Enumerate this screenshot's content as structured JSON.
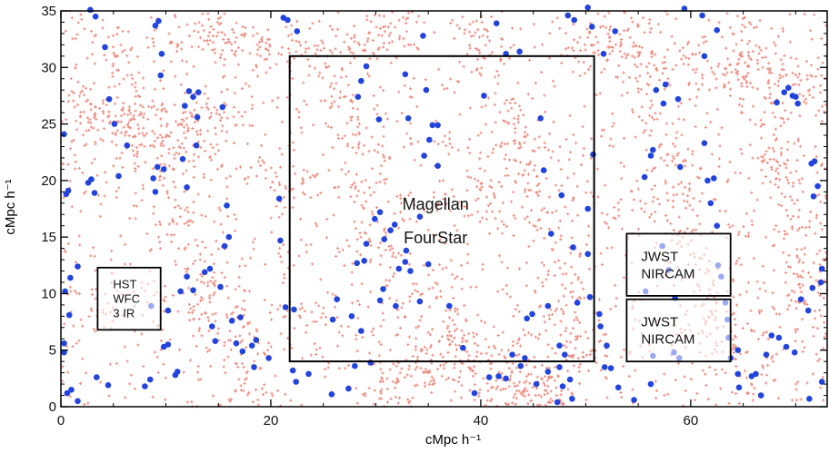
{
  "chart_data": {
    "type": "scatter",
    "title": "",
    "xlabel": "cMpc h⁻¹",
    "ylabel": "cMpc h⁻¹",
    "xlim": [
      0,
      73
    ],
    "ylim": [
      0,
      35
    ],
    "xticks": [
      0,
      20,
      40,
      60
    ],
    "yticks": [
      0,
      5,
      10,
      15,
      20,
      25,
      30,
      35
    ],
    "grid": false,
    "colors": {
      "background_points": "#e8786a",
      "highlight_points": "#2244dd",
      "frames": "#000000"
    },
    "series": [
      {
        "style": "small-cross",
        "points_description_count": 3600,
        "filaments": [
          [
            [
              0,
              21
            ],
            [
              10,
              23
            ],
            [
              18,
              21
            ],
            [
              26,
              19
            ],
            [
              34,
              18
            ],
            [
              44,
              19
            ],
            [
              52,
              18
            ],
            [
              60,
              20
            ],
            [
              73,
              21
            ]
          ],
          [
            [
              3,
              35
            ],
            [
              7,
              27
            ],
            [
              10,
              21
            ],
            [
              13,
              13
            ],
            [
              16,
              5
            ],
            [
              19,
              0
            ]
          ],
          [
            [
              10,
              33
            ],
            [
              18,
              32
            ],
            [
              25,
              31
            ],
            [
              33,
              34
            ]
          ],
          [
            [
              26,
              29
            ],
            [
              29,
              22
            ],
            [
              30,
              14
            ],
            [
              34,
              10
            ],
            [
              38,
              6
            ],
            [
              44,
              3
            ],
            [
              48,
              0
            ]
          ],
          [
            [
              38,
              35
            ],
            [
              42,
              28
            ],
            [
              44,
              22
            ],
            [
              46,
              16
            ],
            [
              48,
              10
            ],
            [
              50,
              4
            ]
          ],
          [
            [
              52,
              35
            ],
            [
              56,
              28
            ],
            [
              58,
              20
            ],
            [
              60,
              12
            ],
            [
              63,
              6
            ],
            [
              67,
              1
            ]
          ],
          [
            [
              0,
              9
            ],
            [
              8,
              9
            ],
            [
              18,
              7
            ],
            [
              25,
              8
            ],
            [
              34,
              7
            ],
            [
              42,
              5
            ],
            [
              50,
              5
            ],
            [
              62,
              6
            ],
            [
              73,
              10
            ]
          ],
          [
            [
              47,
              33
            ],
            [
              55,
              31
            ],
            [
              63,
              30
            ],
            [
              73,
              29
            ]
          ],
          [
            [
              64,
              35
            ],
            [
              66,
              28
            ],
            [
              69,
              20
            ],
            [
              71,
              13
            ],
            [
              73,
              5
            ]
          ],
          [
            [
              0,
              28
            ],
            [
              4,
              25
            ],
            [
              10,
              25
            ],
            [
              16,
              26
            ]
          ],
          [
            [
              30,
              2
            ],
            [
              35,
              4
            ],
            [
              42,
              2
            ],
            [
              48,
              1
            ]
          ]
        ]
      },
      {
        "style": "filled-circle",
        "points": [
          [
            4.2,
            31.8
          ],
          [
            4.6,
            27.2
          ],
          [
            5.1,
            25.0
          ],
          [
            6.3,
            23.1
          ],
          [
            5.5,
            20.4
          ],
          [
            9.0,
            33.7
          ],
          [
            9.3,
            34.1
          ],
          [
            9.6,
            31.2
          ],
          [
            9.5,
            29.3
          ],
          [
            9.2,
            21.2
          ],
          [
            9.8,
            21.0
          ],
          [
            9.0,
            19.0
          ],
          [
            8.8,
            20.2
          ],
          [
            8.6,
            8.9
          ],
          [
            10.2,
            8.5
          ],
          [
            11.8,
            26.6
          ],
          [
            12.2,
            27.9
          ],
          [
            12.6,
            27.4
          ],
          [
            13.1,
            27.8
          ],
          [
            13.0,
            25.6
          ],
          [
            12.9,
            23.1
          ],
          [
            11.6,
            21.9
          ],
          [
            12.0,
            19.4
          ],
          [
            12.0,
            11.5
          ],
          [
            12.6,
            10.3
          ],
          [
            11.4,
            10.2
          ],
          [
            10.2,
            5.5
          ],
          [
            9.8,
            5.3
          ],
          [
            11.1,
            3.1
          ],
          [
            10.9,
            2.8
          ],
          [
            8.5,
            2.4
          ],
          [
            8.0,
            1.8
          ],
          [
            4.5,
            1.9
          ],
          [
            3.4,
            2.6
          ],
          [
            1.0,
            1.5
          ],
          [
            0.6,
            1.2
          ],
          [
            1.6,
            0.5
          ],
          [
            0.5,
            18.8
          ],
          [
            2.6,
            19.8
          ],
          [
            2.9,
            20.1
          ],
          [
            3.2,
            18.9
          ],
          [
            0.7,
            19.1
          ],
          [
            1.6,
            12.4
          ],
          [
            0.9,
            11.4
          ],
          [
            0.4,
            10.2
          ],
          [
            0.8,
            8.1
          ],
          [
            15.4,
            26.5
          ],
          [
            15.8,
            17.8
          ],
          [
            16.0,
            15.0
          ],
          [
            15.6,
            14.2
          ],
          [
            15.2,
            10.6
          ],
          [
            14.2,
            12.2
          ],
          [
            13.7,
            11.9
          ],
          [
            14.4,
            7.1
          ],
          [
            14.7,
            5.8
          ],
          [
            16.3,
            7.6
          ],
          [
            17.1,
            7.9
          ],
          [
            16.7,
            5.6
          ],
          [
            18.2,
            5.4
          ],
          [
            18.6,
            5.9
          ],
          [
            17.3,
            4.9
          ],
          [
            18.4,
            3.5
          ],
          [
            19.8,
            4.3
          ],
          [
            20.8,
            18.4
          ],
          [
            20.9,
            14.7
          ],
          [
            21.4,
            8.8
          ],
          [
            22.2,
            8.6
          ],
          [
            22.1,
            3.2
          ],
          [
            22.4,
            2.2
          ],
          [
            23.6,
            2.9
          ],
          [
            21.2,
            34.4
          ],
          [
            21.6,
            34.2
          ],
          [
            22.5,
            33.2
          ],
          [
            25.8,
            1.1
          ],
          [
            27.4,
            1.6
          ],
          [
            28.0,
            3.6
          ],
          [
            29.5,
            3.9
          ],
          [
            28.6,
            6.7
          ],
          [
            25.9,
            7.7
          ],
          [
            26.3,
            9.5
          ],
          [
            27.7,
            8.0
          ],
          [
            28.2,
            12.7
          ],
          [
            28.9,
            12.9
          ],
          [
            29.1,
            14.4
          ],
          [
            29.9,
            16.6
          ],
          [
            30.4,
            17.2
          ],
          [
            30.8,
            14.8
          ],
          [
            31.4,
            15.6
          ],
          [
            31.8,
            16.1
          ],
          [
            30.4,
            9.4
          ],
          [
            30.7,
            10.4
          ],
          [
            31.9,
            8.9
          ],
          [
            32.2,
            12.2
          ],
          [
            32.9,
            13.8
          ],
          [
            32.8,
            12.8
          ],
          [
            33.3,
            12.0
          ],
          [
            34.2,
            16.8
          ],
          [
            34.6,
            22.2
          ],
          [
            35.1,
            23.6
          ],
          [
            35.4,
            24.9
          ],
          [
            35.9,
            24.9
          ],
          [
            35.9,
            21.3
          ],
          [
            33.1,
            25.5
          ],
          [
            29.1,
            30.1
          ],
          [
            28.6,
            28.8
          ],
          [
            28.3,
            27.4
          ],
          [
            30.3,
            25.4
          ],
          [
            32.8,
            29.4
          ],
          [
            34.8,
            28.0
          ],
          [
            34.5,
            32.8
          ],
          [
            35.0,
            12.6
          ],
          [
            34.2,
            9.3
          ],
          [
            37.0,
            8.9
          ],
          [
            38.3,
            5.2
          ],
          [
            39.4,
            1.2
          ],
          [
            40.8,
            2.6
          ],
          [
            41.7,
            2.7
          ],
          [
            42.4,
            2.5
          ],
          [
            43.0,
            4.6
          ],
          [
            43.8,
            3.6
          ],
          [
            44.2,
            4.3
          ],
          [
            44.4,
            7.8
          ],
          [
            44.9,
            8.2
          ],
          [
            45.3,
            2.0
          ],
          [
            46.4,
            3.1
          ],
          [
            47.5,
            5.4
          ],
          [
            48.0,
            4.6
          ],
          [
            47.5,
            3.5
          ],
          [
            47.8,
            1.8
          ],
          [
            48.5,
            2.4
          ],
          [
            48.7,
            0.7
          ],
          [
            47.3,
            0.4
          ],
          [
            46.4,
            8.9
          ],
          [
            46.7,
            15.3
          ],
          [
            48.8,
            14.1
          ],
          [
            47.7,
            18.7
          ],
          [
            46.0,
            20.9
          ],
          [
            45.7,
            25.5
          ],
          [
            40.3,
            27.5
          ],
          [
            41.5,
            33.9
          ],
          [
            43.7,
            31.4
          ],
          [
            42.4,
            31.2
          ],
          [
            48.9,
            34.2
          ],
          [
            48.3,
            34.6
          ],
          [
            50.2,
            35.3
          ],
          [
            50.6,
            33.6
          ],
          [
            52.8,
            33.2
          ],
          [
            51.7,
            31.2
          ],
          [
            50.7,
            22.3
          ],
          [
            50.2,
            17.5
          ],
          [
            50.2,
            13.5
          ],
          [
            50.4,
            9.7
          ],
          [
            49.2,
            9.2
          ],
          [
            51.3,
            8.2
          ],
          [
            51.4,
            7.1
          ],
          [
            52.0,
            5.4
          ],
          [
            51.8,
            3.5
          ],
          [
            52.4,
            3.4
          ],
          [
            53.1,
            1.7
          ],
          [
            54.6,
            0.6
          ],
          [
            56.2,
            2.0
          ],
          [
            56.4,
            4.5
          ],
          [
            58.4,
            4.8
          ],
          [
            58.9,
            4.3
          ],
          [
            58.5,
            9.6
          ],
          [
            57.9,
            12.1
          ],
          [
            57.3,
            14.2
          ],
          [
            55.7,
            10.2
          ],
          [
            55.6,
            20.3
          ],
          [
            56.2,
            22.2
          ],
          [
            56.4,
            22.7
          ],
          [
            57.4,
            26.8
          ],
          [
            56.7,
            28.0
          ],
          [
            57.6,
            28.5
          ],
          [
            58.8,
            27.2
          ],
          [
            59.4,
            35.2
          ],
          [
            61.1,
            34.6
          ],
          [
            62.5,
            33.3
          ],
          [
            61.3,
            31.0
          ],
          [
            61.3,
            23.3
          ],
          [
            59.0,
            21.2
          ],
          [
            61.6,
            20.0
          ],
          [
            62.2,
            20.2
          ],
          [
            61.9,
            18.0
          ],
          [
            62.5,
            16.0
          ],
          [
            62.6,
            12.5
          ],
          [
            62.9,
            11.5
          ],
          [
            63.3,
            9.2
          ],
          [
            63.5,
            7.7
          ],
          [
            63.6,
            6.1
          ],
          [
            64.5,
            5.0
          ],
          [
            63.8,
            4.3
          ],
          [
            64.5,
            2.9
          ],
          [
            64.6,
            1.7
          ],
          [
            65.8,
            2.7
          ],
          [
            66.2,
            2.9
          ],
          [
            67.2,
            4.6
          ],
          [
            66.7,
            1.0
          ],
          [
            68.2,
            26.9
          ],
          [
            68.9,
            27.8
          ],
          [
            69.3,
            28.2
          ],
          [
            69.7,
            27.5
          ],
          [
            70.0,
            27.4
          ],
          [
            70.2,
            26.8
          ],
          [
            71.5,
            21.5
          ],
          [
            71.8,
            21.7
          ],
          [
            72.1,
            19.5
          ],
          [
            71.7,
            18.6
          ],
          [
            72.5,
            12.2
          ],
          [
            72.4,
            11.0
          ],
          [
            71.6,
            10.5
          ],
          [
            71.2,
            8.5
          ],
          [
            70.5,
            9.5
          ],
          [
            69.9,
            4.8
          ],
          [
            69.1,
            5.3
          ],
          [
            68.4,
            6.1
          ],
          [
            67.7,
            6.3
          ],
          [
            72.5,
            2.2
          ],
          [
            71.3,
            0.7
          ],
          [
            0.3,
            4.8
          ],
          [
            0.3,
            5.6
          ],
          [
            2.8,
            35.1
          ],
          [
            3.3,
            34.5
          ],
          [
            0.3,
            24.1
          ]
        ]
      }
    ],
    "regions": [
      {
        "x0": 21.8,
        "x1": 50.8,
        "y0": 4.0,
        "y1": 31.0,
        "lines": [
          "Magellan",
          "FourStar"
        ]
      },
      {
        "x0": 3.5,
        "x1": 9.5,
        "y0": 6.8,
        "y1": 12.3,
        "lines": [
          "HST",
          "WFC",
          "3 IR"
        ]
      },
      {
        "x0": 53.9,
        "x1": 63.8,
        "y0": 9.8,
        "y1": 15.3,
        "lines": [
          "JWST",
          "NIRCAM"
        ]
      },
      {
        "x0": 53.9,
        "x1": 63.8,
        "y0": 4.0,
        "y1": 9.5,
        "lines": [
          "JWST",
          "NIRCAM"
        ]
      }
    ]
  }
}
